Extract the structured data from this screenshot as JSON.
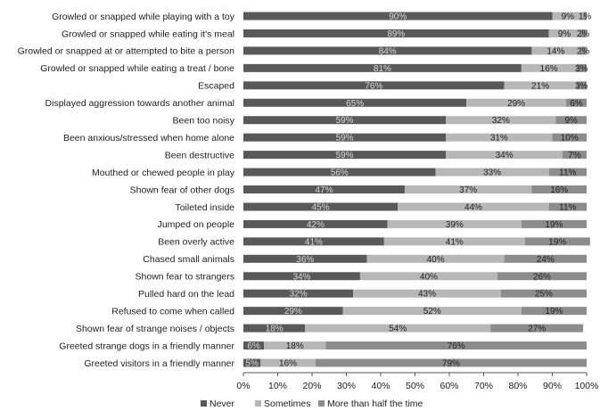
{
  "chart_data": {
    "type": "bar",
    "orientation": "horizontal",
    "stacked": true,
    "title": "",
    "xlabel": "",
    "ylabel": "",
    "xlim": [
      0,
      100
    ],
    "x_ticks": [
      "0%",
      "10%",
      "20%",
      "30%",
      "40%",
      "50%",
      "60%",
      "70%",
      "80%",
      "90%",
      "100%"
    ],
    "grid": false,
    "legend_position": "bottom",
    "categories": [
      "Growled or snapped while playing with a toy",
      "Growled or snapped while eating it's meal",
      "Growled or snapped at or attempted to bite a person",
      "Growled or snapped while eating a treat / bone",
      "Escaped",
      "Displayed aggression towards another animal",
      "Been too noisy",
      "Been anxious/stressed when home alone",
      "Been destructive",
      "Mouthed or chewed people in play",
      "Shown fear of other dogs",
      "Toileted inside",
      "Jumped on people",
      "Been overly active",
      "Chased small animals",
      "Shown fear to strangers",
      "Pulled hard on the lead",
      "Refused to come when called",
      "Shown fear of strange noises / objects",
      "Greeted strange dogs in a friendly manner",
      "Greeted visitors in a friendly manner"
    ],
    "series": [
      {
        "name": "Never",
        "color": "#595959",
        "values": [
          90,
          89,
          84,
          81,
          76,
          65,
          59,
          59,
          59,
          56,
          47,
          45,
          42,
          41,
          36,
          34,
          32,
          29,
          18,
          6,
          5
        ]
      },
      {
        "name": "Sometimes",
        "color": "#b7b7b7",
        "values": [
          9,
          9,
          14,
          16,
          21,
          29,
          32,
          31,
          34,
          33,
          37,
          44,
          39,
          41,
          40,
          40,
          43,
          52,
          54,
          18,
          16
        ]
      },
      {
        "name": "More than half the time",
        "color": "#8c8c8c",
        "values": [
          1,
          2,
          2,
          3,
          3,
          6,
          9,
          10,
          7,
          11,
          16,
          11,
          19,
          19,
          24,
          26,
          25,
          19,
          27,
          76,
          79
        ]
      }
    ]
  }
}
